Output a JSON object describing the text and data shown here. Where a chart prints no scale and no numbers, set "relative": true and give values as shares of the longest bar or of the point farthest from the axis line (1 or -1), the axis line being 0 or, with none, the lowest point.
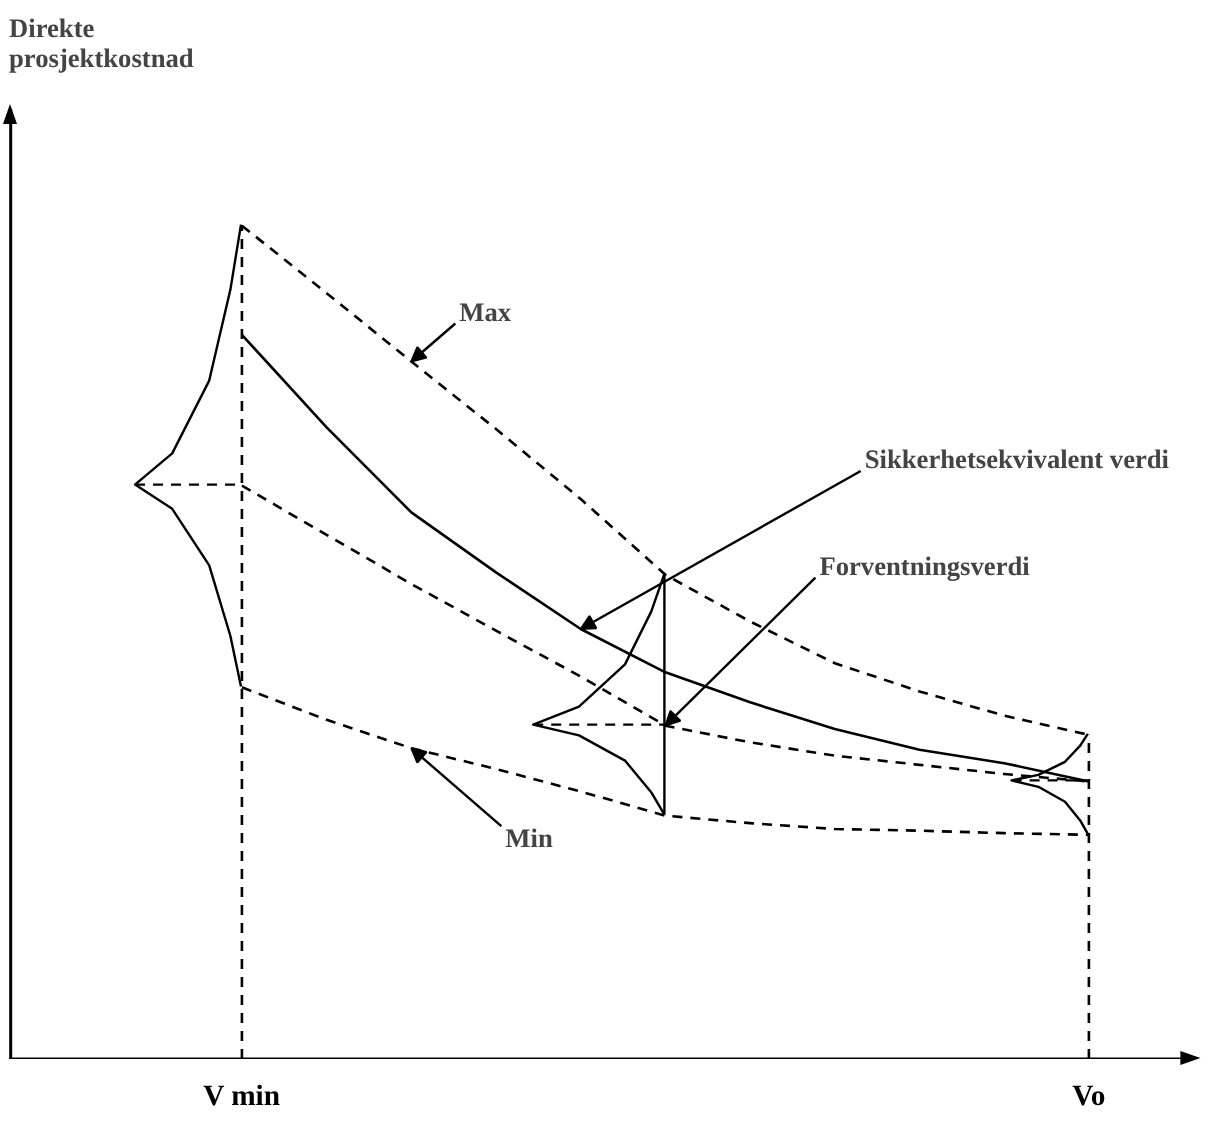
{
  "chart_data": {
    "type": "line",
    "relative": true,
    "categories": [
      null,
      null,
      "V min",
      null,
      null,
      null,
      null,
      null,
      null,
      null,
      null,
      null,
      "Vo",
      null
    ],
    "tick_labels": "x",
    "marker": "none",
    "series": [
      {
        "color": "#000000",
        "line_style": "dashed",
        "values": [
          null,
          null,
          1.0,
          0.919,
          0.837,
          0.756,
          0.672,
          0.581,
          0.525,
          0.475,
          0.441,
          0.412,
          0.389,
          null
        ]
      },
      {
        "color": "#000000",
        "line_style": "dashed",
        "values": [
          null,
          null,
          0.688,
          0.629,
          0.57,
          0.514,
          0.459,
          0.4,
          0.38,
          0.364,
          0.353,
          0.342,
          0.333,
          null
        ]
      },
      {
        "color": "#000000",
        "line_style": "dashed",
        "values": [
          null,
          null,
          0.446,
          0.407,
          0.373,
          0.348,
          0.321,
          0.292,
          0.283,
          0.276,
          0.274,
          0.271,
          0.269,
          null
        ]
      },
      {
        "color": "#000000",
        "line_style": "solid",
        "values": [
          null,
          null,
          0.869,
          0.758,
          0.656,
          0.584,
          0.516,
          0.464,
          0.428,
          0.396,
          0.371,
          0.355,
          0.333,
          null
        ]
      }
    ],
    "ref_lines": [
      {
        "axis": "x",
        "value": "V min",
        "line_style": "dashed",
        "color": "#000000"
      },
      {
        "axis": "x",
        "value": "Vo",
        "line_style": "dashed",
        "color": "#000000"
      }
    ],
    "annotations": [
      "Direkte prosjektkostnad",
      "Max",
      "Sikkerhetsekvivalent verdi",
      "Forventningsverdi",
      "Min"
    ]
  }
}
